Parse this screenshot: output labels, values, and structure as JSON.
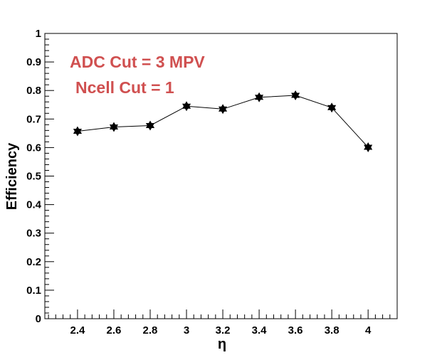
{
  "chart_data": {
    "type": "line",
    "xlabel": "η",
    "ylabel": "Efficiency",
    "xlim": [
      2.22,
      4.16
    ],
    "ylim": [
      0,
      1
    ],
    "x_ticks": [
      "2.4",
      "2.6",
      "2.8",
      "3",
      "3.2",
      "3.4",
      "3.6",
      "3.8",
      "4"
    ],
    "y_ticks": [
      "0",
      "0.1",
      "0.2",
      "0.3",
      "0.4",
      "0.5",
      "0.6",
      "0.7",
      "0.8",
      "0.9",
      "1"
    ],
    "grid": false,
    "marker": "star",
    "series": [
      {
        "x": [
          2.4,
          2.6,
          2.8,
          3.0,
          3.2,
          3.4,
          3.6,
          3.8,
          4.0
        ],
        "y": [
          0.657,
          0.672,
          0.677,
          0.745,
          0.735,
          0.776,
          0.783,
          0.74,
          0.601
        ]
      }
    ],
    "annotations": [
      "ADC Cut = 3 MPV",
      "Ncell Cut = 1"
    ],
    "annotation_color": "#d05050"
  }
}
